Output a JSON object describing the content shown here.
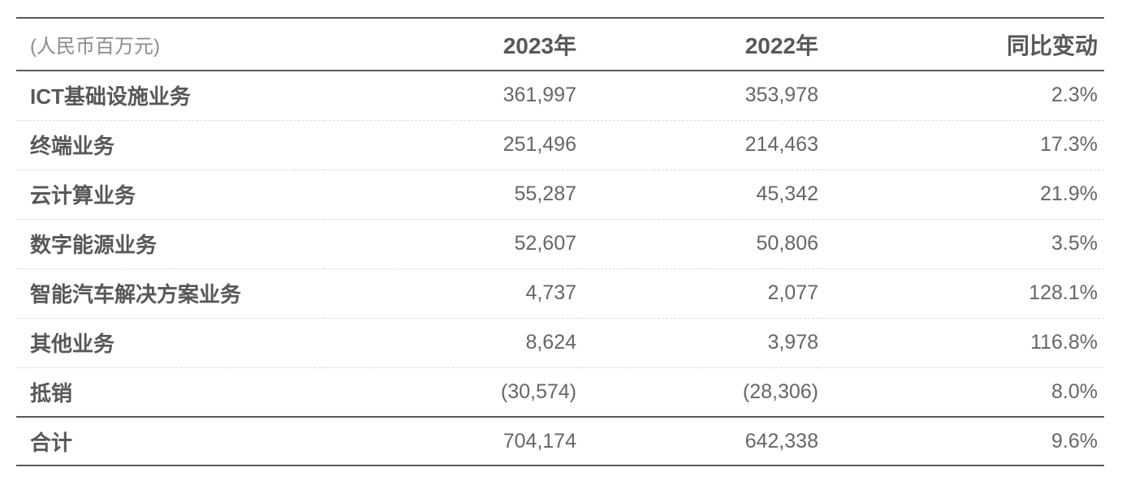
{
  "table": {
    "unit_label": "(人民币百万元)",
    "columns": {
      "y2023": "2023年",
      "y2022": "2022年",
      "yoy": "同比变动"
    },
    "rows": [
      {
        "label": "ICT基础设施业务",
        "y2023": "361,997",
        "y2022": "353,978",
        "yoy": "2.3%"
      },
      {
        "label": "终端业务",
        "y2023": "251,496",
        "y2022": "214,463",
        "yoy": "17.3%"
      },
      {
        "label": "云计算业务",
        "y2023": "55,287",
        "y2022": "45,342",
        "yoy": "21.9%"
      },
      {
        "label": "数字能源业务",
        "y2023": "52,607",
        "y2022": "50,806",
        "yoy": "3.5%"
      },
      {
        "label": "智能汽车解决方案业务",
        "y2023": "4,737",
        "y2022": "2,077",
        "yoy": "128.1%"
      },
      {
        "label": "其他业务",
        "y2023": "8,624",
        "y2022": "3,978",
        "yoy": "116.8%"
      },
      {
        "label": "抵销",
        "y2023": "(30,574)",
        "y2022": "(28,306)",
        "yoy": "8.0%"
      },
      {
        "label": "合计",
        "y2023": "704,174",
        "y2022": "642,338",
        "yoy": "9.6%"
      }
    ],
    "colors": {
      "text_label": "#595757",
      "text_number": "#666666",
      "text_unit": "#8c8c8c",
      "line_solid": "#595757",
      "line_dashed": "#dcdcdc"
    }
  }
}
